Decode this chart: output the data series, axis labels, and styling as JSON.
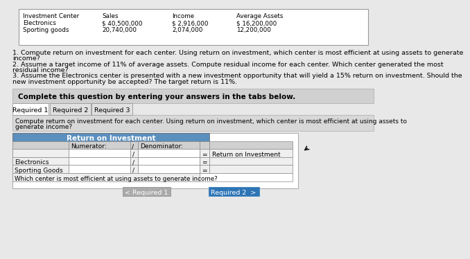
{
  "bg_color": "#e8e8e8",
  "white": "#ffffff",
  "light_gray": "#d0d0d0",
  "med_gray": "#c0c0c0",
  "dark_gray": "#a0a0a0",
  "blue_header": "#5b8fbe",
  "tab_blue": "#2e75b6",
  "top_table": {
    "headers": [
      "Investment Center",
      "Sales",
      "Income",
      "Average Assets"
    ],
    "rows": [
      [
        "Electronics",
        "$ 40,500,000",
        "$ 2,916,000",
        "$ 16,200,000"
      ],
      [
        "Sporting goods",
        "20,740,000",
        "2,074,000",
        "12,200,000"
      ]
    ]
  },
  "questions": [
    "1. Compute return on investment for each center. Using return on investment, which center is most efficient at using assets to generate",
    "income?",
    "2. Assume a target income of 11% of average assets. Compute residual income for each center. Which center generated the most",
    "residual income?",
    "3. Assume the Electronics center is presented with a new investment opportunity that will yield a 15% return on investment. Should the",
    "new investment opportunity be accepted? The target return is 11%."
  ],
  "complete_text": "Complete this question by entering your answers in the tabs below.",
  "tabs": [
    "Required 1",
    "Required 2",
    "Required 3"
  ],
  "active_tab": 0,
  "instruction_line1": "Compute return on investment for each center. Using return on investment, which center is most efficient at using assets to",
  "instruction_line2": "generate income?",
  "roi_header": "Return on Investment",
  "row_labels": [
    "",
    "Electronics",
    "Sporting Goods"
  ],
  "last_row_label": "Which center is most efficient at using assets to generate income?",
  "btn_prev": "< Required 1",
  "btn_next": "Required 2  >"
}
